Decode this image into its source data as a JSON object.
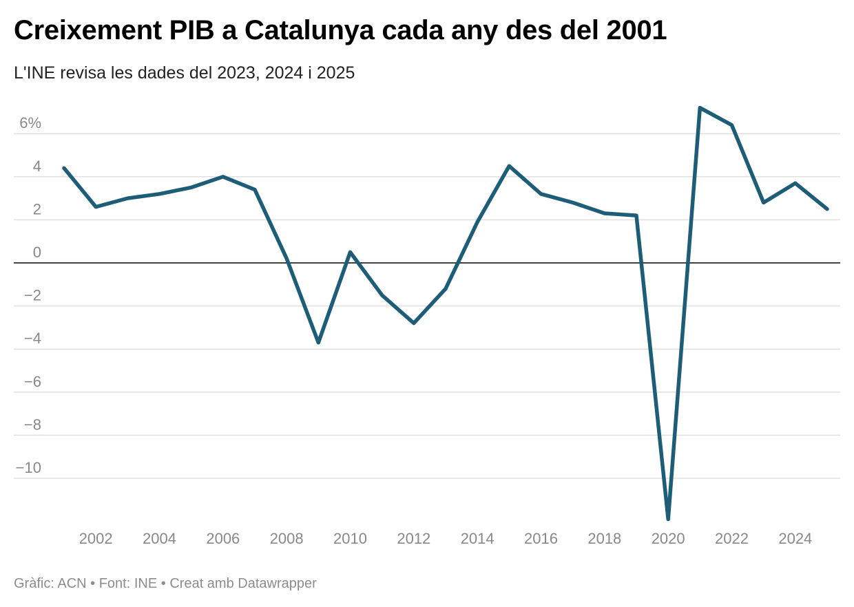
{
  "header": {
    "title": "Creixement PIB a Catalunya cada any des del 2001",
    "subtitle": "L'INE revisa les dades del 2023, 2024 i 2025"
  },
  "footer": {
    "credit": "Gràfic: ACN",
    "separator": "•",
    "source": "Font: INE",
    "tool": "Creat amb Datawrapper"
  },
  "colors": {
    "line": "#1d5d78",
    "grid": "#e0e0e0",
    "zero_line": "#000000"
  },
  "chart_data": {
    "type": "line",
    "title": "Creixement PIB a Catalunya cada any des del 2001",
    "subtitle": "L'INE revisa les dades del 2023, 2024 i 2025",
    "xlabel": "",
    "ylabel": "",
    "xlim": [
      2001,
      2025
    ],
    "ylim": [
      -12,
      7
    ],
    "grid": true,
    "y_ticks": [
      6,
      4,
      2,
      0,
      -2,
      -4,
      -6,
      -8,
      -10
    ],
    "y_tick_labels": [
      "6%",
      "4",
      "2",
      "0",
      "−2",
      "−4",
      "−6",
      "−8",
      "−10"
    ],
    "x_ticks": [
      2002,
      2004,
      2006,
      2008,
      2010,
      2012,
      2014,
      2016,
      2018,
      2020,
      2022,
      2024
    ],
    "x_tick_labels": [
      "2002",
      "2004",
      "2006",
      "2008",
      "2010",
      "2012",
      "2014",
      "2016",
      "2018",
      "2020",
      "2022",
      "2024"
    ],
    "x": [
      2001,
      2002,
      2003,
      2004,
      2005,
      2006,
      2007,
      2008,
      2009,
      2010,
      2011,
      2012,
      2013,
      2014,
      2015,
      2016,
      2017,
      2018,
      2019,
      2020,
      2021,
      2022,
      2023,
      2024,
      2025
    ],
    "series": [
      {
        "values": [
          4.4,
          2.6,
          3.0,
          3.2,
          3.5,
          4.0,
          3.4,
          0.2,
          -3.7,
          0.5,
          -1.5,
          -2.8,
          -1.2,
          1.9,
          4.5,
          3.2,
          2.8,
          2.3,
          2.2,
          -11.9,
          7.2,
          6.4,
          2.8,
          3.7,
          2.5
        ]
      }
    ]
  }
}
